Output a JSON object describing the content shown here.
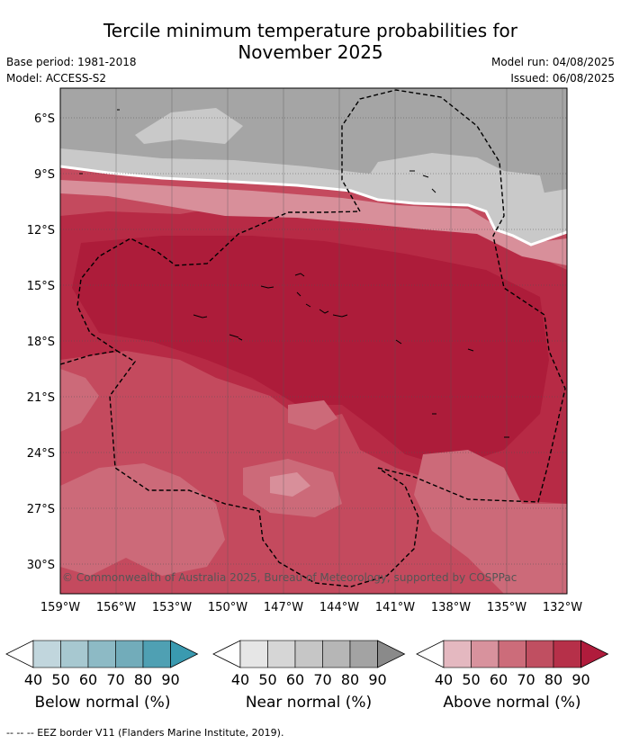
{
  "title": {
    "line1": "Tercile minimum temperature probabilities for",
    "line2": "November 2025"
  },
  "meta": {
    "base_period": "Base period: 1981-2018",
    "model": "Model: ACCESS-S2",
    "model_run": "Model run: 04/08/2025",
    "issued": "Issued: 06/08/2025"
  },
  "map": {
    "lat_labels": [
      "6°S",
      "9°S",
      "12°S",
      "15°S",
      "18°S",
      "21°S",
      "24°S",
      "27°S",
      "30°S"
    ],
    "lon_labels": [
      "159°W",
      "156°W",
      "153°W",
      "150°W",
      "147°W",
      "144°W",
      "141°W",
      "138°W",
      "135°W",
      "132°W"
    ],
    "copyright": "© Commonwealth of Australia 2025, Bureau of Meteorology, supported by COSPPac",
    "colors": {
      "above_80": "#b72a45",
      "above_70": "#c44a5e",
      "above_60": "#cc6a79",
      "above_50": "#d88f9a",
      "above_40": "#e4b3bb",
      "near_70": "#a5a5a5",
      "near_60": "#b8b8b8",
      "near_50": "#c9c9c9",
      "near_40": "#d9d9d9",
      "deep": "#ad1c3a"
    }
  },
  "legend": {
    "ticks": [
      "40",
      "50",
      "60",
      "70",
      "80",
      "90"
    ],
    "below": {
      "title": "Below normal (%)",
      "colors": [
        "#c1d6dd",
        "#a7c8d0",
        "#8dbac5",
        "#72acba",
        "#4fa0b3",
        "#3a9ab0"
      ]
    },
    "near": {
      "title": "Near normal (%)",
      "colors": [
        "#e6e6e6",
        "#d6d6d6",
        "#c6c6c6",
        "#b6b6b6",
        "#a3a3a3",
        "#8a8a8a"
      ]
    },
    "above": {
      "title": "Above normal (%)",
      "colors": [
        "#e4b8c0",
        "#d8929d",
        "#cc6c7a",
        "#c04f61",
        "#b63049",
        "#b01c3c"
      ]
    }
  },
  "footer": "-- -- -- EEZ border V11 (Flanders Marine Institute, 2019)."
}
